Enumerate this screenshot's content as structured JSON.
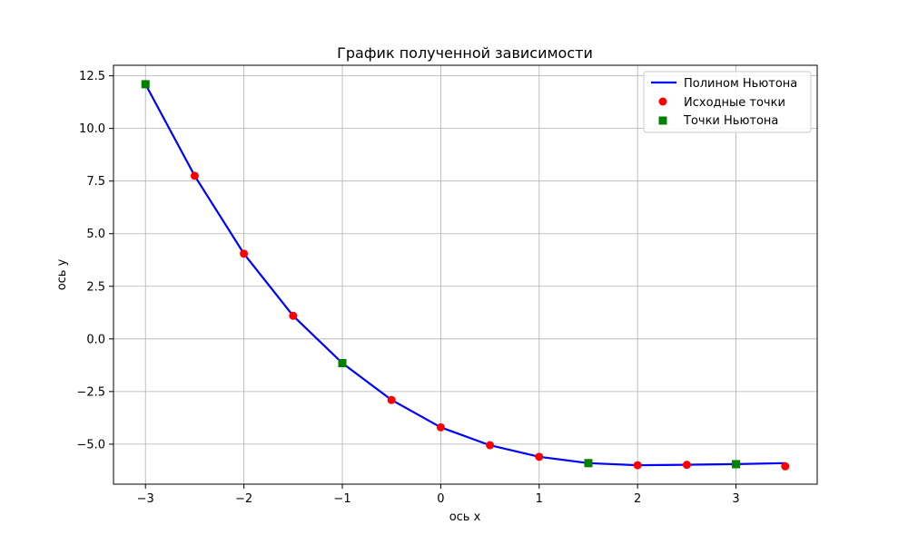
{
  "chart_data": {
    "type": "line",
    "title": "График полученной зависимости",
    "xlabel": "ось x",
    "ylabel": "ось y",
    "xlim": [
      -3.325,
      3.825
    ],
    "ylim": [
      -6.9,
      13.0
    ],
    "xticks": [
      -3,
      -2,
      -1,
      0,
      1,
      2,
      3
    ],
    "yticks": [
      -5.0,
      -2.5,
      0.0,
      2.5,
      5.0,
      7.5,
      10.0,
      12.5
    ],
    "xtick_labels": [
      "−3",
      "−2",
      "−1",
      "0",
      "1",
      "2",
      "3"
    ],
    "ytick_labels": [
      "−5.0",
      "−2.5",
      "0.0",
      "2.5",
      "5.0",
      "7.5",
      "10.0",
      "12.5"
    ],
    "grid": true,
    "legend_position": "top-right",
    "series": [
      {
        "name": "Полином Ньютона",
        "kind": "line",
        "color": "#0000ff",
        "x": [
          -3.0,
          -2.5,
          -2.0,
          -1.5,
          -1.0,
          -0.5,
          0.0,
          0.5,
          1.0,
          1.5,
          2.0,
          2.5,
          3.0,
          3.5
        ],
        "y": [
          12.1,
          7.75,
          4.05,
          1.1,
          -1.15,
          -2.9,
          -4.2,
          -5.05,
          -5.6,
          -5.9,
          -6.0,
          -5.98,
          -5.95,
          -5.9
        ]
      },
      {
        "name": "Исходные точки",
        "kind": "scatter",
        "marker": "circle",
        "color": "#ff0000",
        "x": [
          -3.0,
          -2.5,
          -2.0,
          -1.5,
          -1.0,
          -0.5,
          0.0,
          0.5,
          1.0,
          1.5,
          2.0,
          2.5,
          3.0,
          3.5
        ],
        "y": [
          12.1,
          7.75,
          4.05,
          1.1,
          -1.15,
          -2.9,
          -4.2,
          -5.05,
          -5.6,
          -5.9,
          -6.0,
          -5.98,
          -5.95,
          -6.05
        ]
      },
      {
        "name": "Точки Ньютона",
        "kind": "scatter",
        "marker": "square",
        "color": "#008000",
        "x": [
          -3.0,
          -1.0,
          1.5,
          3.0
        ],
        "y": [
          12.1,
          -1.15,
          -5.9,
          -5.95
        ]
      }
    ]
  }
}
